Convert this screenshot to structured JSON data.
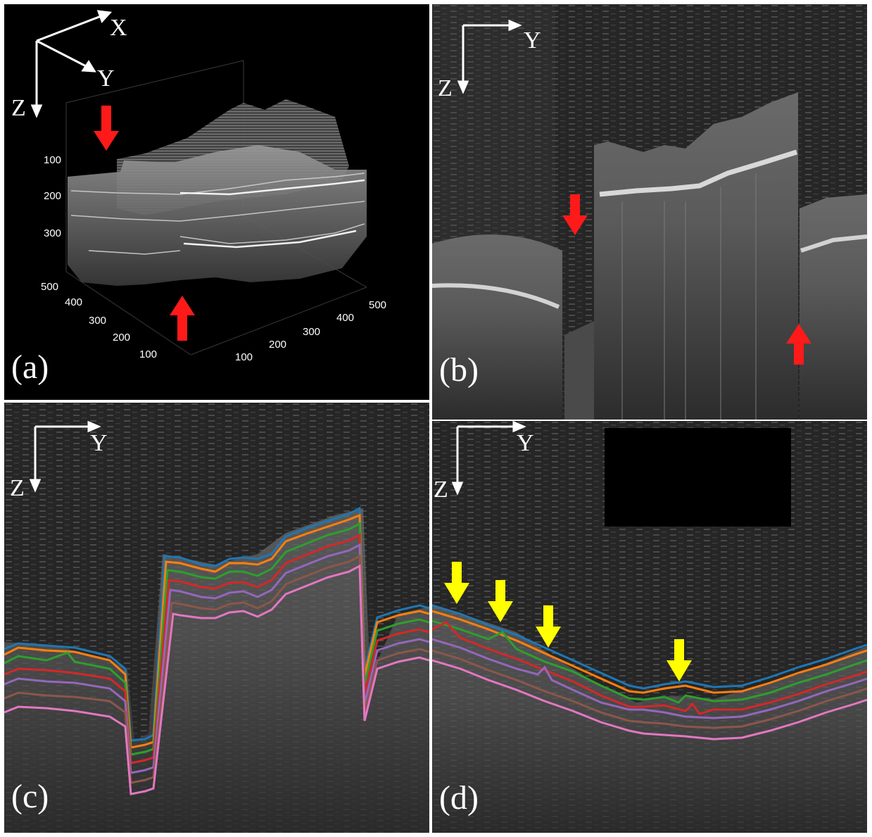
{
  "panels": {
    "a": {
      "label": "(a)",
      "axes": {
        "x": "X",
        "y": "Y",
        "z": "Z"
      },
      "z_ticks": [
        "100",
        "200",
        "300",
        "500"
      ],
      "y_ticks": [
        "400",
        "300",
        "200",
        "100"
      ],
      "x_ticks": [
        "100",
        "200",
        "300",
        "400",
        "500"
      ]
    },
    "b": {
      "label": "(b)",
      "axes": {
        "y": "Y",
        "z": "Z"
      }
    },
    "c": {
      "label": "(c)",
      "axes": {
        "y": "Y",
        "z": "Z"
      }
    },
    "d": {
      "label": "(d)",
      "axes": {
        "y": "Y",
        "z": "Z"
      }
    }
  },
  "colors": {
    "background": "#000000",
    "red_arrow": "#ff1a1a",
    "yellow_arrow": "#ffff00",
    "layer_lines": [
      "#1f77b4",
      "#ff7f0e",
      "#2ca02c",
      "#d62728",
      "#9467bd",
      "#8c564b",
      "#e377c2"
    ]
  }
}
